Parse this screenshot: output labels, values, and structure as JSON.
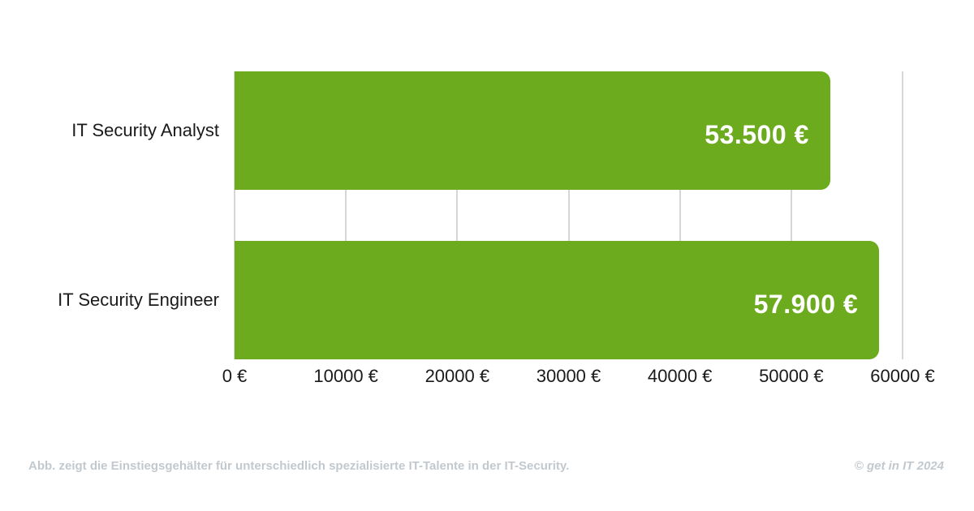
{
  "chart_data": {
    "type": "bar",
    "orientation": "horizontal",
    "categories": [
      "IT Security Analyst",
      "IT Security Engineer"
    ],
    "values": [
      53500,
      57900
    ],
    "value_labels": [
      "53.500 €",
      "57.900 €"
    ],
    "x_tick_labels": [
      "0 €",
      "10000 €",
      "20000 €",
      "30000 €",
      "40000 €",
      "50000 €",
      "60000 €"
    ],
    "x_tick_values": [
      0,
      10000,
      20000,
      30000,
      40000,
      50000,
      60000
    ],
    "xlim": [
      0,
      60000
    ],
    "grid": true,
    "legend": "none",
    "title": "",
    "xlabel": "",
    "ylabel": ""
  },
  "colors": {
    "bar_green": "#6dab1e",
    "value_text": "#ffffff",
    "gridline": "#d6d6d6",
    "axis_text": "#1a1a1a",
    "footer_text": "#c2c9ce",
    "background": "#ffffff"
  },
  "footer": {
    "caption": "Abb. zeigt die Einstiegsgehälter für unterschiedlich spezialisierte IT-Talente in der IT-Security.",
    "copyright": "© get in IT 2024"
  }
}
